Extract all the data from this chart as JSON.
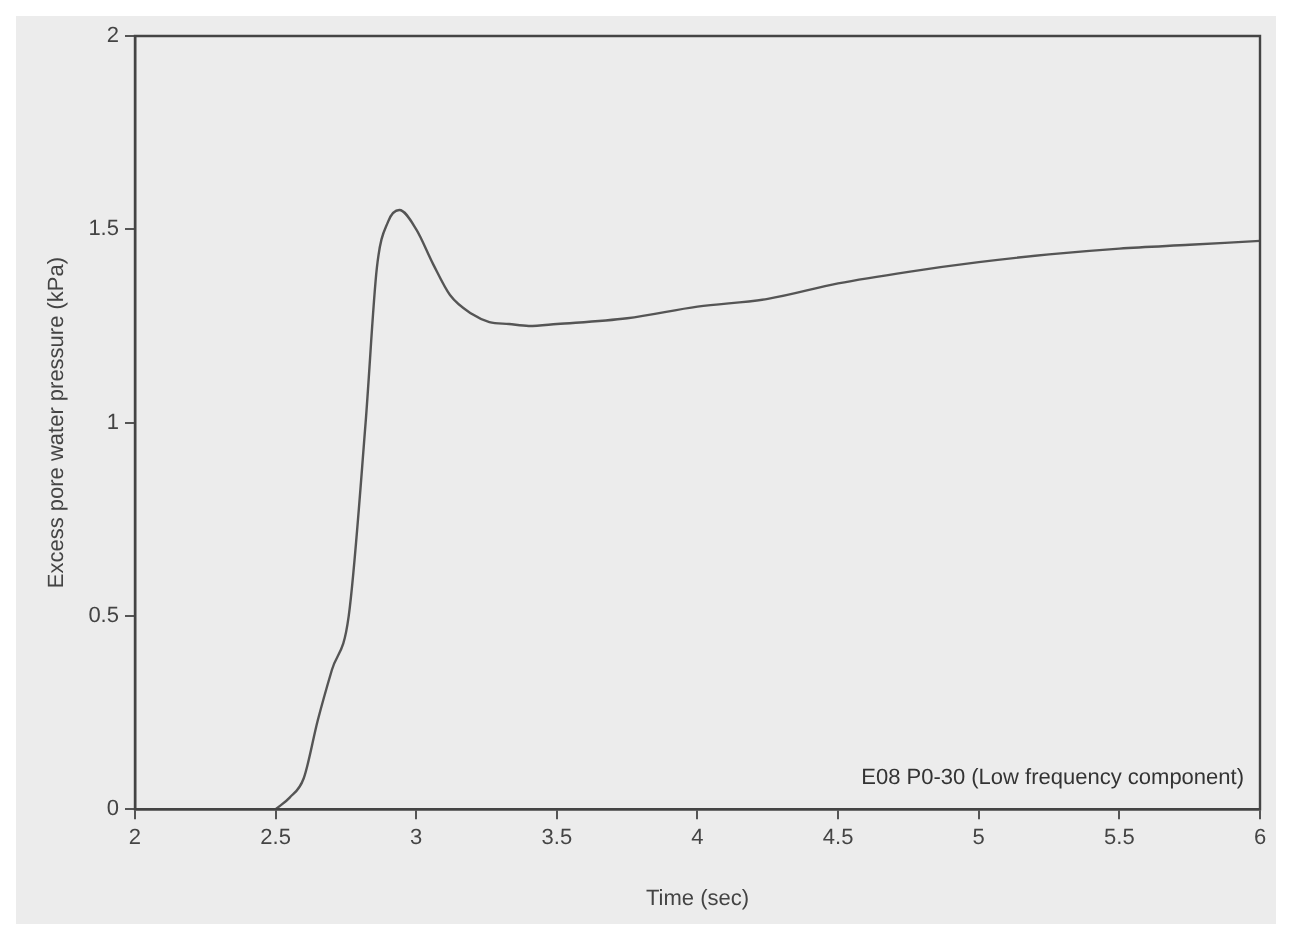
{
  "chart_data": {
    "type": "line",
    "xlabel": "Time (sec)",
    "ylabel": "Excess pore water pressure (kPa)",
    "annotations": [
      "E08 P0-30 (Low frequency component)"
    ],
    "series": [
      {
        "color": "#555555",
        "x": [
          2.5,
          2.55,
          2.6,
          2.65,
          2.7,
          2.76,
          2.82,
          2.86,
          2.9,
          2.94,
          3.0,
          3.06,
          3.12,
          3.2,
          3.26,
          3.33,
          3.4,
          3.5,
          3.75,
          4.0,
          4.25,
          4.5,
          4.75,
          5.0,
          5.25,
          5.5,
          5.75,
          6.0
        ],
        "values": [
          0,
          0.03,
          0.08,
          0.23,
          0.36,
          0.5,
          1.0,
          1.4,
          1.52,
          1.55,
          1.5,
          1.41,
          1.33,
          1.28,
          1.26,
          1.255,
          1.25,
          1.255,
          1.27,
          1.3,
          1.32,
          1.36,
          1.39,
          1.415,
          1.435,
          1.45,
          1.46,
          1.47
        ]
      }
    ],
    "xlim": [
      2,
      6
    ],
    "xticks": [
      2,
      2.5,
      3,
      3.5,
      4,
      4.5,
      5,
      5.5,
      6
    ],
    "ylim": [
      0,
      2
    ],
    "yticks": [
      0,
      0.5,
      1,
      1.5,
      2
    ],
    "grid": false,
    "legend": false,
    "marker": "none",
    "line_style": "solid"
  }
}
